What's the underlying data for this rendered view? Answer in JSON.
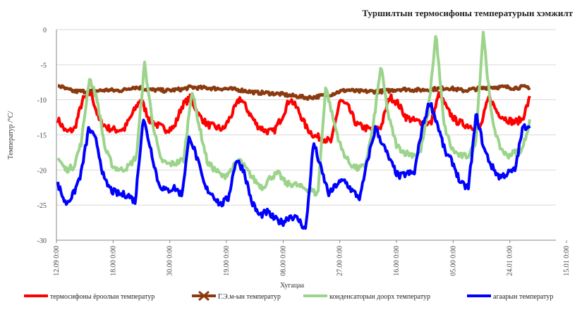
{
  "chart_data": {
    "type": "line",
    "title": "Туршилтын термосифоны температурын хэмжилт",
    "xlabel": "Хугацаа",
    "ylabel": "Температур /°С/",
    "ylim": [
      -30,
      0
    ],
    "yticks": [
      0,
      -5,
      -10,
      -15,
      -20,
      -25,
      -30
    ],
    "ytick_labels": [
      "0",
      "-5",
      "-10",
      "-15",
      "-20",
      "-25",
      "-30"
    ],
    "xticks": [
      "12.09 0:00",
      "18.00 0:00",
      "30.00 0:00",
      "19.00 0:00",
      "08.00 0:00",
      "27.00 0:00",
      "16.00 0:00",
      "05.00 0:00",
      "24.01 0:00",
      "15.01 0:00"
    ],
    "grid": "horizontal",
    "legend_position": "bottom",
    "series": [
      {
        "name": "термосифоны ёроолын температур",
        "color": "#ff0000",
        "values": [
          -12.8,
          -14.6,
          -14.2,
          -10.0,
          -9.0,
          -13.0,
          -14.0,
          -14.3,
          -14.2,
          -12.0,
          -9.8,
          -12.8,
          -13.6,
          -14.2,
          -14.0,
          -10.8,
          -9.7,
          -12.2,
          -13.5,
          -13.9,
          -14.2,
          -12.0,
          -9.7,
          -11.7,
          -13.6,
          -14.4,
          -14.6,
          -12.5,
          -9.8,
          -11.5,
          -14.0,
          -15.2,
          -15.5,
          -16.0,
          -10.0,
          -11.0,
          -13.5,
          -14.0,
          -14.3,
          -13.8,
          -9.5,
          -10.5,
          -12.5,
          -13.0,
          -13.2,
          -13.4,
          -9.0,
          -11.5,
          -13.0,
          -13.5,
          -13.8,
          -13.8,
          -9.5,
          -11.8,
          -12.7,
          -13.2,
          -12.8,
          -9.5
        ]
      },
      {
        "name": "Г.Э.м-ын температур",
        "color": "#8b3a0f",
        "values": [
          -7.9,
          -8.5,
          -8.8,
          -8.8,
          -8.8,
          -8.7,
          -8.6,
          -8.7,
          -8.6,
          -8.2,
          -8.3,
          -8.6,
          -8.6,
          -8.7,
          -8.6,
          -8.5,
          -8.2,
          -8.3,
          -8.3,
          -8.4,
          -8.4,
          -8.5,
          -8.6,
          -8.8,
          -9.0,
          -9.0,
          -9.1,
          -9.2,
          -9.4,
          -9.5,
          -9.7,
          -9.6,
          -9.4,
          -9.2,
          -8.8,
          -8.6,
          -8.8,
          -8.8,
          -8.8,
          -8.8,
          -8.7,
          -8.5,
          -8.5,
          -8.6,
          -8.6,
          -8.5,
          -8.4,
          -8.3,
          -8.5,
          -8.7,
          -8.5,
          -8.4,
          -8.2,
          -8.2,
          -8.2,
          -8.3,
          -8.2,
          -8.2
        ]
      },
      {
        "name": "конденсаторын доорх температур",
        "color": "#9bd48a",
        "values": [
          -18.3,
          -20.0,
          -19.5,
          -16.0,
          -6.8,
          -10.0,
          -17.0,
          -19.5,
          -20.0,
          -19.5,
          -18.0,
          -4.8,
          -13.0,
          -18.5,
          -19.2,
          -19.0,
          -18.5,
          -8.5,
          -14.0,
          -19.0,
          -20.0,
          -21.0,
          -20.0,
          -18.5,
          -20.0,
          -21.5,
          -22.5,
          -21.0,
          -20.5,
          -22.0,
          -22.0,
          -22.5,
          -22.8,
          -23.5,
          -8.0,
          -13.0,
          -17.0,
          -19.0,
          -19.8,
          -19.5,
          -14.0,
          -5.2,
          -12.5,
          -16.5,
          -17.5,
          -17.8,
          -17.5,
          -12.0,
          -0.5,
          -13.5,
          -17.0,
          -18.0,
          -18.0,
          -16.5,
          -0.2,
          -12.0,
          -16.5,
          -18.0,
          -17.5,
          -17.0,
          -12.5
        ]
      },
      {
        "name": "агаарын температур",
        "color": "#0000ff",
        "values": [
          -22.0,
          -24.8,
          -23.5,
          -20.5,
          -14.0,
          -16.0,
          -21.5,
          -23.0,
          -23.5,
          -23.5,
          -24.5,
          -12.5,
          -17.0,
          -22.0,
          -23.0,
          -22.5,
          -23.5,
          -15.0,
          -18.5,
          -22.5,
          -23.5,
          -25.0,
          -24.0,
          -18.5,
          -20.0,
          -24.5,
          -26.5,
          -26.0,
          -27.0,
          -27.5,
          -26.5,
          -27.0,
          -28.5,
          -16.0,
          -20.0,
          -23.5,
          -22.0,
          -21.5,
          -23.0,
          -24.0,
          -18.5,
          -14.0,
          -16.5,
          -19.0,
          -21.0,
          -20.5,
          -20.5,
          -14.0,
          -10.2,
          -13.5,
          -17.5,
          -19.0,
          -22.0,
          -22.5,
          -12.0,
          -17.0,
          -19.5,
          -21.0,
          -20.5,
          -20.0,
          -14.0,
          -13.5
        ]
      }
    ]
  }
}
